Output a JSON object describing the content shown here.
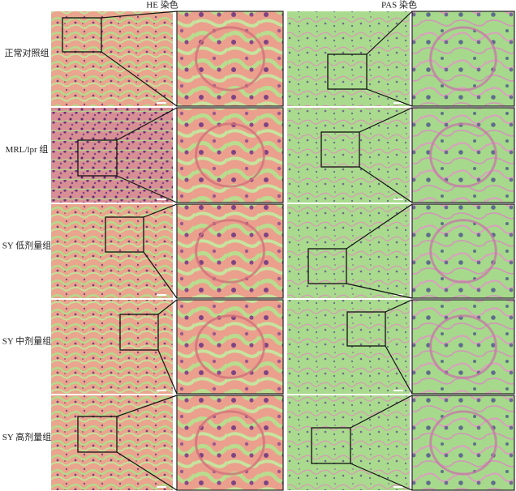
{
  "header": {
    "he": "HE 染色",
    "pas": "PAS 染色"
  },
  "rows": [
    {
      "label": "正常对照组"
    },
    {
      "label": "MRL/lpr 组"
    },
    {
      "label": "SY 低剂量组"
    },
    {
      "label": "SY 中剂量组"
    },
    {
      "label": "SY 高剂量组"
    }
  ]
}
